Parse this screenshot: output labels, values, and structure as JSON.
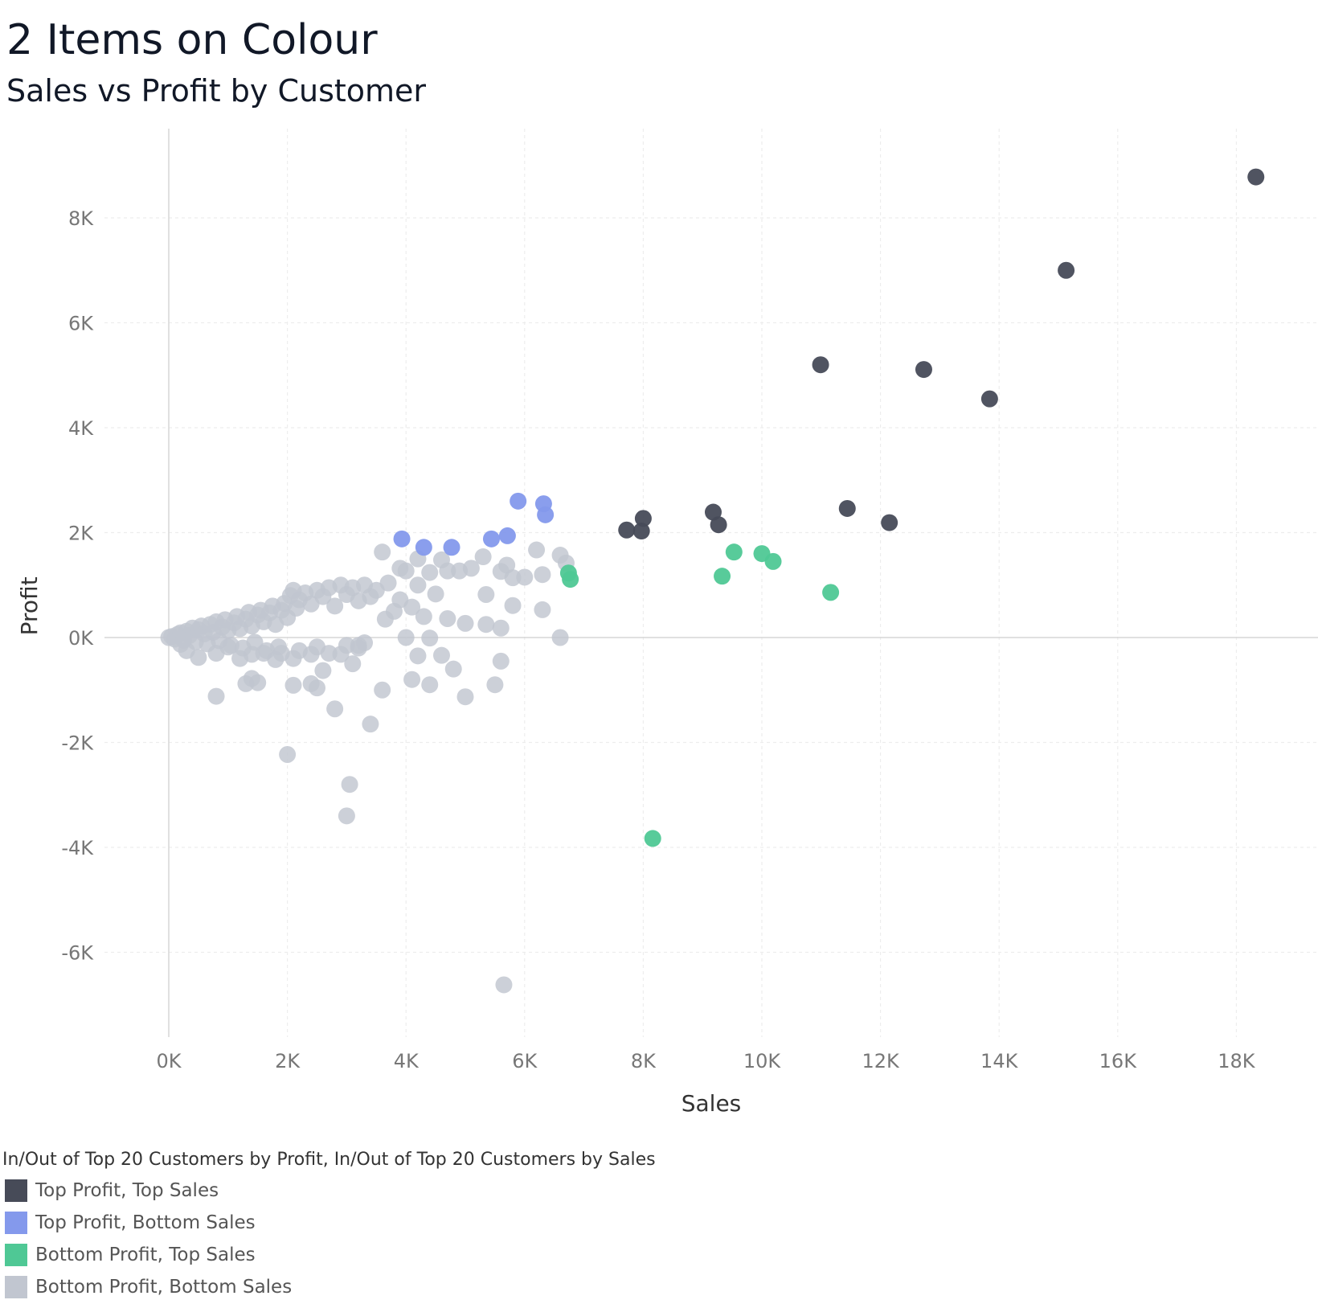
{
  "chart_data": {
    "type": "scatter",
    "title": "2 Items on Colour",
    "subtitle": "Sales vs Profit by Customer",
    "xlabel": "Sales",
    "ylabel": "Profit",
    "xlim": [
      -1000,
      19500
    ],
    "ylim": [
      -7500,
      9800
    ],
    "x_ticks": [
      0,
      2000,
      4000,
      6000,
      8000,
      10000,
      12000,
      14000,
      16000,
      18000
    ],
    "x_tick_labels": [
      "0K",
      "2K",
      "4K",
      "6K",
      "8K",
      "10K",
      "12K",
      "14K",
      "16K",
      "18K"
    ],
    "y_ticks": [
      -6000,
      -4000,
      -2000,
      0,
      2000,
      4000,
      6000,
      8000
    ],
    "y_tick_labels": [
      "-6K",
      "-4K",
      "-2K",
      "0K",
      "2K",
      "4K",
      "6K",
      "8K"
    ],
    "grid": true,
    "legend": {
      "title": "In/Out of Top 20 Customers by Profit, In/Out of Top 20 Customers by Sales",
      "position": "bottom-left"
    },
    "series": [
      {
        "name": "Top Profit, Top Sales",
        "color": "#474b58",
        "points": [
          [
            18330,
            8780
          ],
          [
            15130,
            7000
          ],
          [
            10990,
            5200
          ],
          [
            12730,
            5110
          ],
          [
            13840,
            4550
          ],
          [
            11440,
            2460
          ],
          [
            12150,
            2190
          ],
          [
            9180,
            2390
          ],
          [
            9270,
            2150
          ],
          [
            8000,
            2270
          ],
          [
            7720,
            2050
          ],
          [
            7970,
            2030
          ]
        ]
      },
      {
        "name": "Top Profit, Bottom Sales",
        "color": "#8499ec",
        "points": [
          [
            5890,
            2600
          ],
          [
            6320,
            2550
          ],
          [
            6350,
            2340
          ],
          [
            3930,
            1880
          ],
          [
            4300,
            1720
          ],
          [
            4770,
            1720
          ],
          [
            5440,
            1880
          ],
          [
            5710,
            1940
          ]
        ]
      },
      {
        "name": "Bottom Profit, Top Sales",
        "color": "#4fc895",
        "points": [
          [
            9530,
            1630
          ],
          [
            10000,
            1600
          ],
          [
            10190,
            1450
          ],
          [
            9330,
            1170
          ],
          [
            11160,
            860
          ],
          [
            6740,
            1230
          ],
          [
            6770,
            1110
          ],
          [
            8160,
            -3830
          ]
        ]
      },
      {
        "name": "Bottom Profit, Bottom Sales",
        "color": "#c1c6d0",
        "points": [
          [
            0,
            0
          ],
          [
            50,
            20
          ],
          [
            100,
            -30
          ],
          [
            150,
            60
          ],
          [
            200,
            90
          ],
          [
            250,
            -50
          ],
          [
            300,
            120
          ],
          [
            350,
            40
          ],
          [
            400,
            180
          ],
          [
            450,
            -80
          ],
          [
            500,
            150
          ],
          [
            550,
            220
          ],
          [
            600,
            70
          ],
          [
            650,
            -120
          ],
          [
            700,
            250
          ],
          [
            750,
            100
          ],
          [
            800,
            300
          ],
          [
            850,
            -60
          ],
          [
            900,
            200
          ],
          [
            950,
            340
          ],
          [
            1000,
            130
          ],
          [
            1050,
            -150
          ],
          [
            1100,
            280
          ],
          [
            1150,
            400
          ],
          [
            1200,
            170
          ],
          [
            1250,
            -200
          ],
          [
            1300,
            350
          ],
          [
            1350,
            480
          ],
          [
            1400,
            220
          ],
          [
            1450,
            -90
          ],
          [
            1500,
            430
          ],
          [
            1550,
            520
          ],
          [
            1600,
            300
          ],
          [
            1650,
            -250
          ],
          [
            1700,
            470
          ],
          [
            1750,
            600
          ],
          [
            1800,
            250
          ],
          [
            1850,
            -180
          ],
          [
            1900,
            520
          ],
          [
            1950,
            650
          ],
          [
            2000,
            380
          ],
          [
            2050,
            800
          ],
          [
            2100,
            900
          ],
          [
            2150,
            560
          ],
          [
            2200,
            720
          ],
          [
            2300,
            850
          ],
          [
            2400,
            640
          ],
          [
            2500,
            900
          ],
          [
            2600,
            780
          ],
          [
            2700,
            950
          ],
          [
            2800,
            600
          ],
          [
            2900,
            1000
          ],
          [
            3000,
            820
          ],
          [
            3100,
            950
          ],
          [
            3200,
            700
          ],
          [
            3300,
            1000
          ],
          [
            3400,
            780
          ],
          [
            3500,
            900
          ],
          [
            200,
            -130
          ],
          [
            300,
            -250
          ],
          [
            500,
            -380
          ],
          [
            800,
            -300
          ],
          [
            1000,
            -180
          ],
          [
            1200,
            -400
          ],
          [
            1400,
            -320
          ],
          [
            1600,
            -300
          ],
          [
            1800,
            -420
          ],
          [
            1900,
            -300
          ],
          [
            2100,
            -400
          ],
          [
            2200,
            -250
          ],
          [
            2400,
            -320
          ],
          [
            2500,
            -180
          ],
          [
            2700,
            -300
          ],
          [
            2900,
            -320
          ],
          [
            3000,
            -150
          ],
          [
            3200,
            -200
          ],
          [
            3300,
            -100
          ],
          [
            800,
            -1120
          ],
          [
            1300,
            -880
          ],
          [
            1400,
            -780
          ],
          [
            1500,
            -860
          ],
          [
            2100,
            -910
          ],
          [
            2400,
            -880
          ],
          [
            2500,
            -960
          ],
          [
            2600,
            -630
          ],
          [
            2800,
            -1360
          ],
          [
            3100,
            -500
          ],
          [
            3400,
            -1650
          ],
          [
            3600,
            -1000
          ],
          [
            4100,
            -800
          ],
          [
            4400,
            -900
          ],
          [
            4800,
            -600
          ],
          [
            5000,
            -1130
          ],
          [
            5500,
            -900
          ],
          [
            5600,
            -450
          ],
          [
            2000,
            -2230
          ],
          [
            3050,
            -2800
          ],
          [
            3000,
            -3400
          ],
          [
            5650,
            -6620
          ],
          [
            3600,
            1630
          ],
          [
            3700,
            1040
          ],
          [
            3900,
            1320
          ],
          [
            4000,
            1270
          ],
          [
            4200,
            1000
          ],
          [
            4400,
            1240
          ],
          [
            4600,
            1480
          ],
          [
            4700,
            1270
          ],
          [
            4900,
            1270
          ],
          [
            5100,
            1320
          ],
          [
            5300,
            1540
          ],
          [
            5600,
            1260
          ],
          [
            5700,
            1380
          ],
          [
            5800,
            1140
          ],
          [
            6000,
            1150
          ],
          [
            6200,
            1670
          ],
          [
            6300,
            1200
          ],
          [
            6600,
            1570
          ],
          [
            6700,
            1420
          ],
          [
            4200,
            1500
          ],
          [
            4500,
            830
          ],
          [
            4300,
            400
          ],
          [
            4700,
            360
          ],
          [
            5000,
            270
          ],
          [
            5350,
            250
          ],
          [
            5600,
            180
          ],
          [
            5800,
            610
          ],
          [
            6300,
            530
          ],
          [
            5350,
            820
          ],
          [
            6600,
            0
          ],
          [
            4000,
            0
          ],
          [
            4600,
            -340
          ],
          [
            4200,
            -350
          ],
          [
            3900,
            720
          ],
          [
            3800,
            500
          ],
          [
            3650,
            350
          ],
          [
            4100,
            580
          ],
          [
            4400,
            -10
          ],
          [
            3200,
            -150
          ]
        ]
      }
    ]
  }
}
